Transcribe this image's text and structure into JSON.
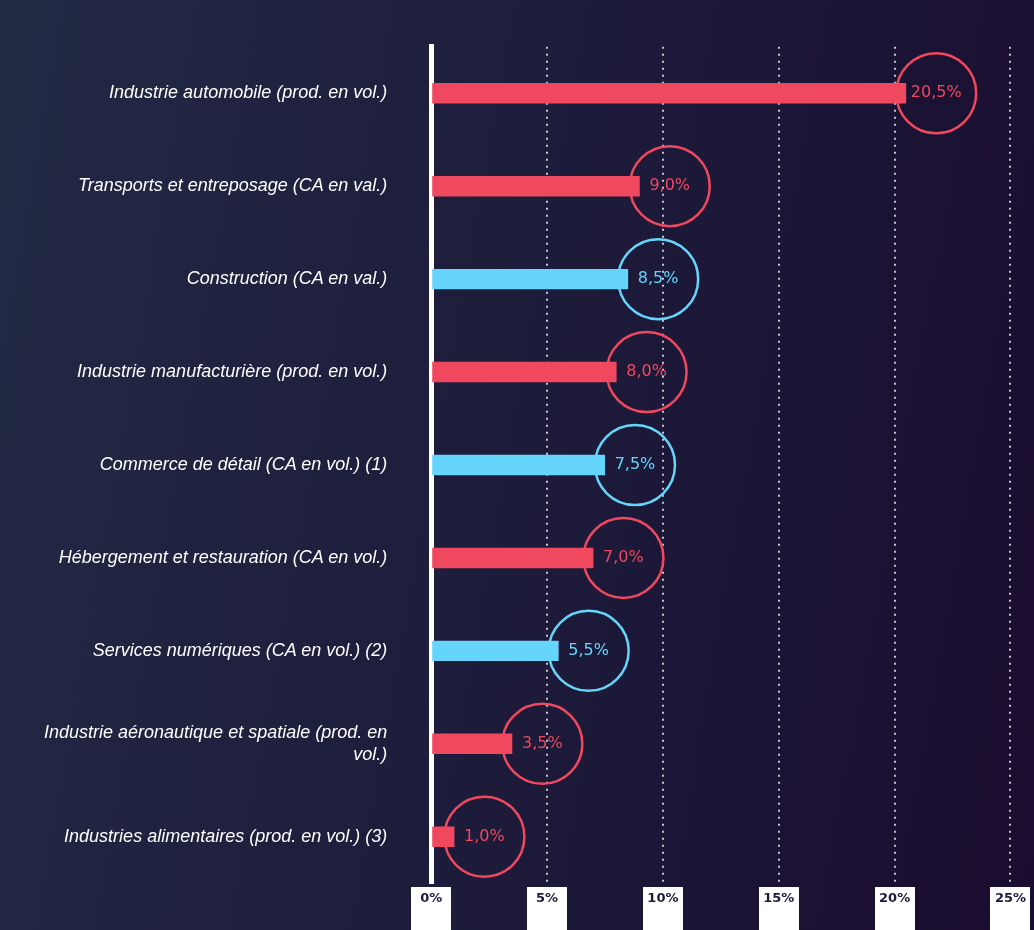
{
  "chart_data": {
    "type": "bar",
    "orientation": "horizontal",
    "categories": [
      "Industrie automobile (prod. en vol.)",
      "Transports et entreposage (CA en val.)",
      "Construction (CA en val.)",
      "Industrie manufacturière (prod. en vol.)",
      "Commerce de détail (CA en vol.) (1)",
      "Hébergement et restauration (CA en vol.)",
      "Services numériques (CA en vol.) (2)",
      "Industrie aéronautique et spatiale (prod. en vol.)",
      "Industries alimentaires (prod. en vol.) (3)"
    ],
    "values": [
      20.5,
      9.0,
      8.5,
      8.0,
      7.5,
      7.0,
      5.5,
      3.5,
      1.0
    ],
    "value_labels": [
      "20,5%",
      "9,0%",
      "8,5%",
      "8,0%",
      "7,5%",
      "7,0%",
      "5,5%",
      "3,5%",
      "1,0%"
    ],
    "colors": [
      "#f0485e",
      "#f0485e",
      "#66d5fb",
      "#f0485e",
      "#66d5fb",
      "#f0485e",
      "#66d5fb",
      "#f0485e",
      "#f0485e"
    ],
    "xlim": [
      0,
      25
    ],
    "xticks": [
      {
        "value": 0,
        "label": "0%"
      },
      {
        "value": 5,
        "label": "5%"
      },
      {
        "value": 10,
        "label": "10%"
      },
      {
        "value": 15,
        "label": "15%"
      },
      {
        "value": 20,
        "label": "20%"
      },
      {
        "value": 25,
        "label": "25%"
      }
    ],
    "grid": "x",
    "legend": false
  }
}
